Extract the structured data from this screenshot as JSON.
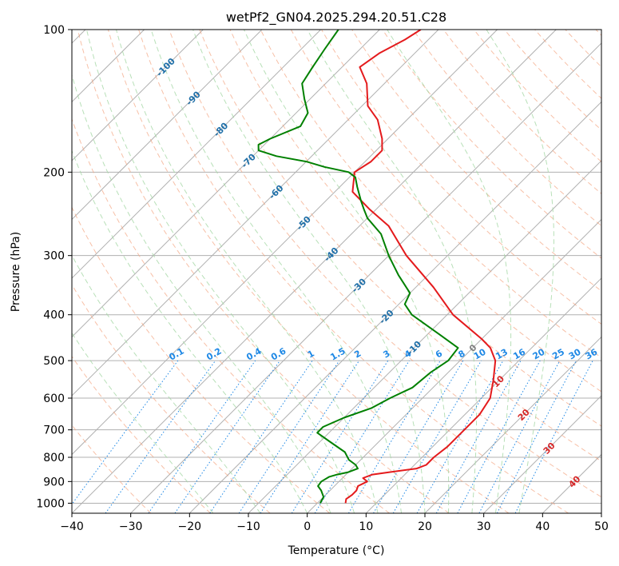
{
  "chart_data": {
    "type": "line",
    "title": "wetPf2_GN04.2025.294.20.51.C28",
    "xlabel": "Temperature (°C)",
    "ylabel": "Pressure (hPa)",
    "xlim": [
      -40,
      50
    ],
    "ylim": [
      1050,
      100
    ],
    "y_scale": "log",
    "grid": true,
    "x_ticks": [
      -40,
      -30,
      -20,
      -10,
      0,
      10,
      20,
      30,
      40,
      50
    ],
    "y_ticks": [
      1000,
      900,
      800,
      700,
      600,
      500,
      400,
      300,
      200,
      100
    ],
    "skew": 35,
    "series": [
      {
        "color": "#e41a1c",
        "points": [
          [
            1000,
            4.8
          ],
          [
            980,
            4.2
          ],
          [
            960,
            4.5
          ],
          [
            940,
            4.5
          ],
          [
            920,
            4.0
          ],
          [
            900,
            4.8
          ],
          [
            885,
            3.5
          ],
          [
            870,
            4.5
          ],
          [
            860,
            7.0
          ],
          [
            845,
            11.0
          ],
          [
            830,
            12.0
          ],
          [
            800,
            12.0
          ],
          [
            760,
            12.5
          ],
          [
            700,
            12.5
          ],
          [
            650,
            12.5
          ],
          [
            600,
            11.5
          ],
          [
            550,
            9.0
          ],
          [
            500,
            6.0
          ],
          [
            470,
            3.0
          ],
          [
            450,
            0.0
          ],
          [
            400,
            -9.0
          ],
          [
            350,
            -17.0
          ],
          [
            300,
            -27.0
          ],
          [
            260,
            -35.0
          ],
          [
            240,
            -41.0
          ],
          [
            220,
            -47.0
          ],
          [
            200,
            -50.0
          ],
          [
            190,
            -49.0
          ],
          [
            180,
            -49.0
          ],
          [
            170,
            -51.0
          ],
          [
            155,
            -55.0
          ],
          [
            145,
            -59.0
          ],
          [
            130,
            -63.0
          ],
          [
            120,
            -67.0
          ],
          [
            112,
            -66.0
          ],
          [
            105,
            -64.0
          ],
          [
            100,
            -63.0
          ]
        ]
      },
      {
        "color": "#008000",
        "points": [
          [
            1000,
            0.5
          ],
          [
            970,
            0.0
          ],
          [
            940,
            -1.5
          ],
          [
            920,
            -2.8
          ],
          [
            900,
            -3.0
          ],
          [
            880,
            -2.5
          ],
          [
            870,
            -1.5
          ],
          [
            860,
            0.0
          ],
          [
            845,
            1.0
          ],
          [
            830,
            0.0
          ],
          [
            810,
            -2.0
          ],
          [
            780,
            -4.0
          ],
          [
            740,
            -8.5
          ],
          [
            710,
            -12.0
          ],
          [
            690,
            -12.0
          ],
          [
            660,
            -10.0
          ],
          [
            630,
            -7.0
          ],
          [
            600,
            -5.5
          ],
          [
            570,
            -3.5
          ],
          [
            530,
            -3.0
          ],
          [
            500,
            -2.0
          ],
          [
            470,
            -2.5
          ],
          [
            440,
            -8.0
          ],
          [
            400,
            -16.0
          ],
          [
            380,
            -19.0
          ],
          [
            360,
            -20.0
          ],
          [
            330,
            -25.0
          ],
          [
            300,
            -30.0
          ],
          [
            270,
            -35.0
          ],
          [
            250,
            -40.0
          ],
          [
            240,
            -42.0
          ],
          [
            230,
            -44.0
          ],
          [
            215,
            -47.0
          ],
          [
            205,
            -49.0
          ],
          [
            200,
            -51.0
          ],
          [
            195,
            -56.0
          ],
          [
            190,
            -60.0
          ],
          [
            185,
            -66.0
          ],
          [
            180,
            -70.0
          ],
          [
            175,
            -71.0
          ],
          [
            170,
            -70.0
          ],
          [
            160,
            -67.0
          ],
          [
            150,
            -68.0
          ],
          [
            140,
            -71.0
          ],
          [
            130,
            -74.0
          ],
          [
            120,
            -75.0
          ],
          [
            110,
            -76.0
          ],
          [
            100,
            -77.0
          ]
        ]
      }
    ],
    "isotherm_labels": [
      -100,
      -90,
      -80,
      -70,
      -60,
      -50,
      -40,
      -30,
      -20,
      -10,
      0,
      10,
      20,
      30,
      40
    ],
    "mixing_ratio_labels": [
      "0.1",
      "0.2",
      "0.4",
      "0.6",
      "1",
      "1.5",
      "2",
      "3",
      "4",
      "6",
      "8",
      "10",
      "13",
      "16",
      "20",
      "25",
      "30",
      "36"
    ],
    "mixing_ratio_values": [
      0.1,
      0.2,
      0.4,
      0.6,
      1,
      1.5,
      2,
      3,
      4,
      6,
      8,
      10,
      13,
      16,
      20,
      25,
      30,
      36
    ],
    "colors": {
      "temperature": "#e41a1c",
      "dewpoint": "#008000",
      "isotherm_label": "#1f6fa8",
      "isotherm_label_warm": "#d62728",
      "isotherm_label_zero": "#808080",
      "mixing_ratio": "#1e88e5",
      "dry_adiabat": "#f4a582",
      "moist_adiabat": "#a6d8a6",
      "grid": "#b0b0b0"
    }
  }
}
